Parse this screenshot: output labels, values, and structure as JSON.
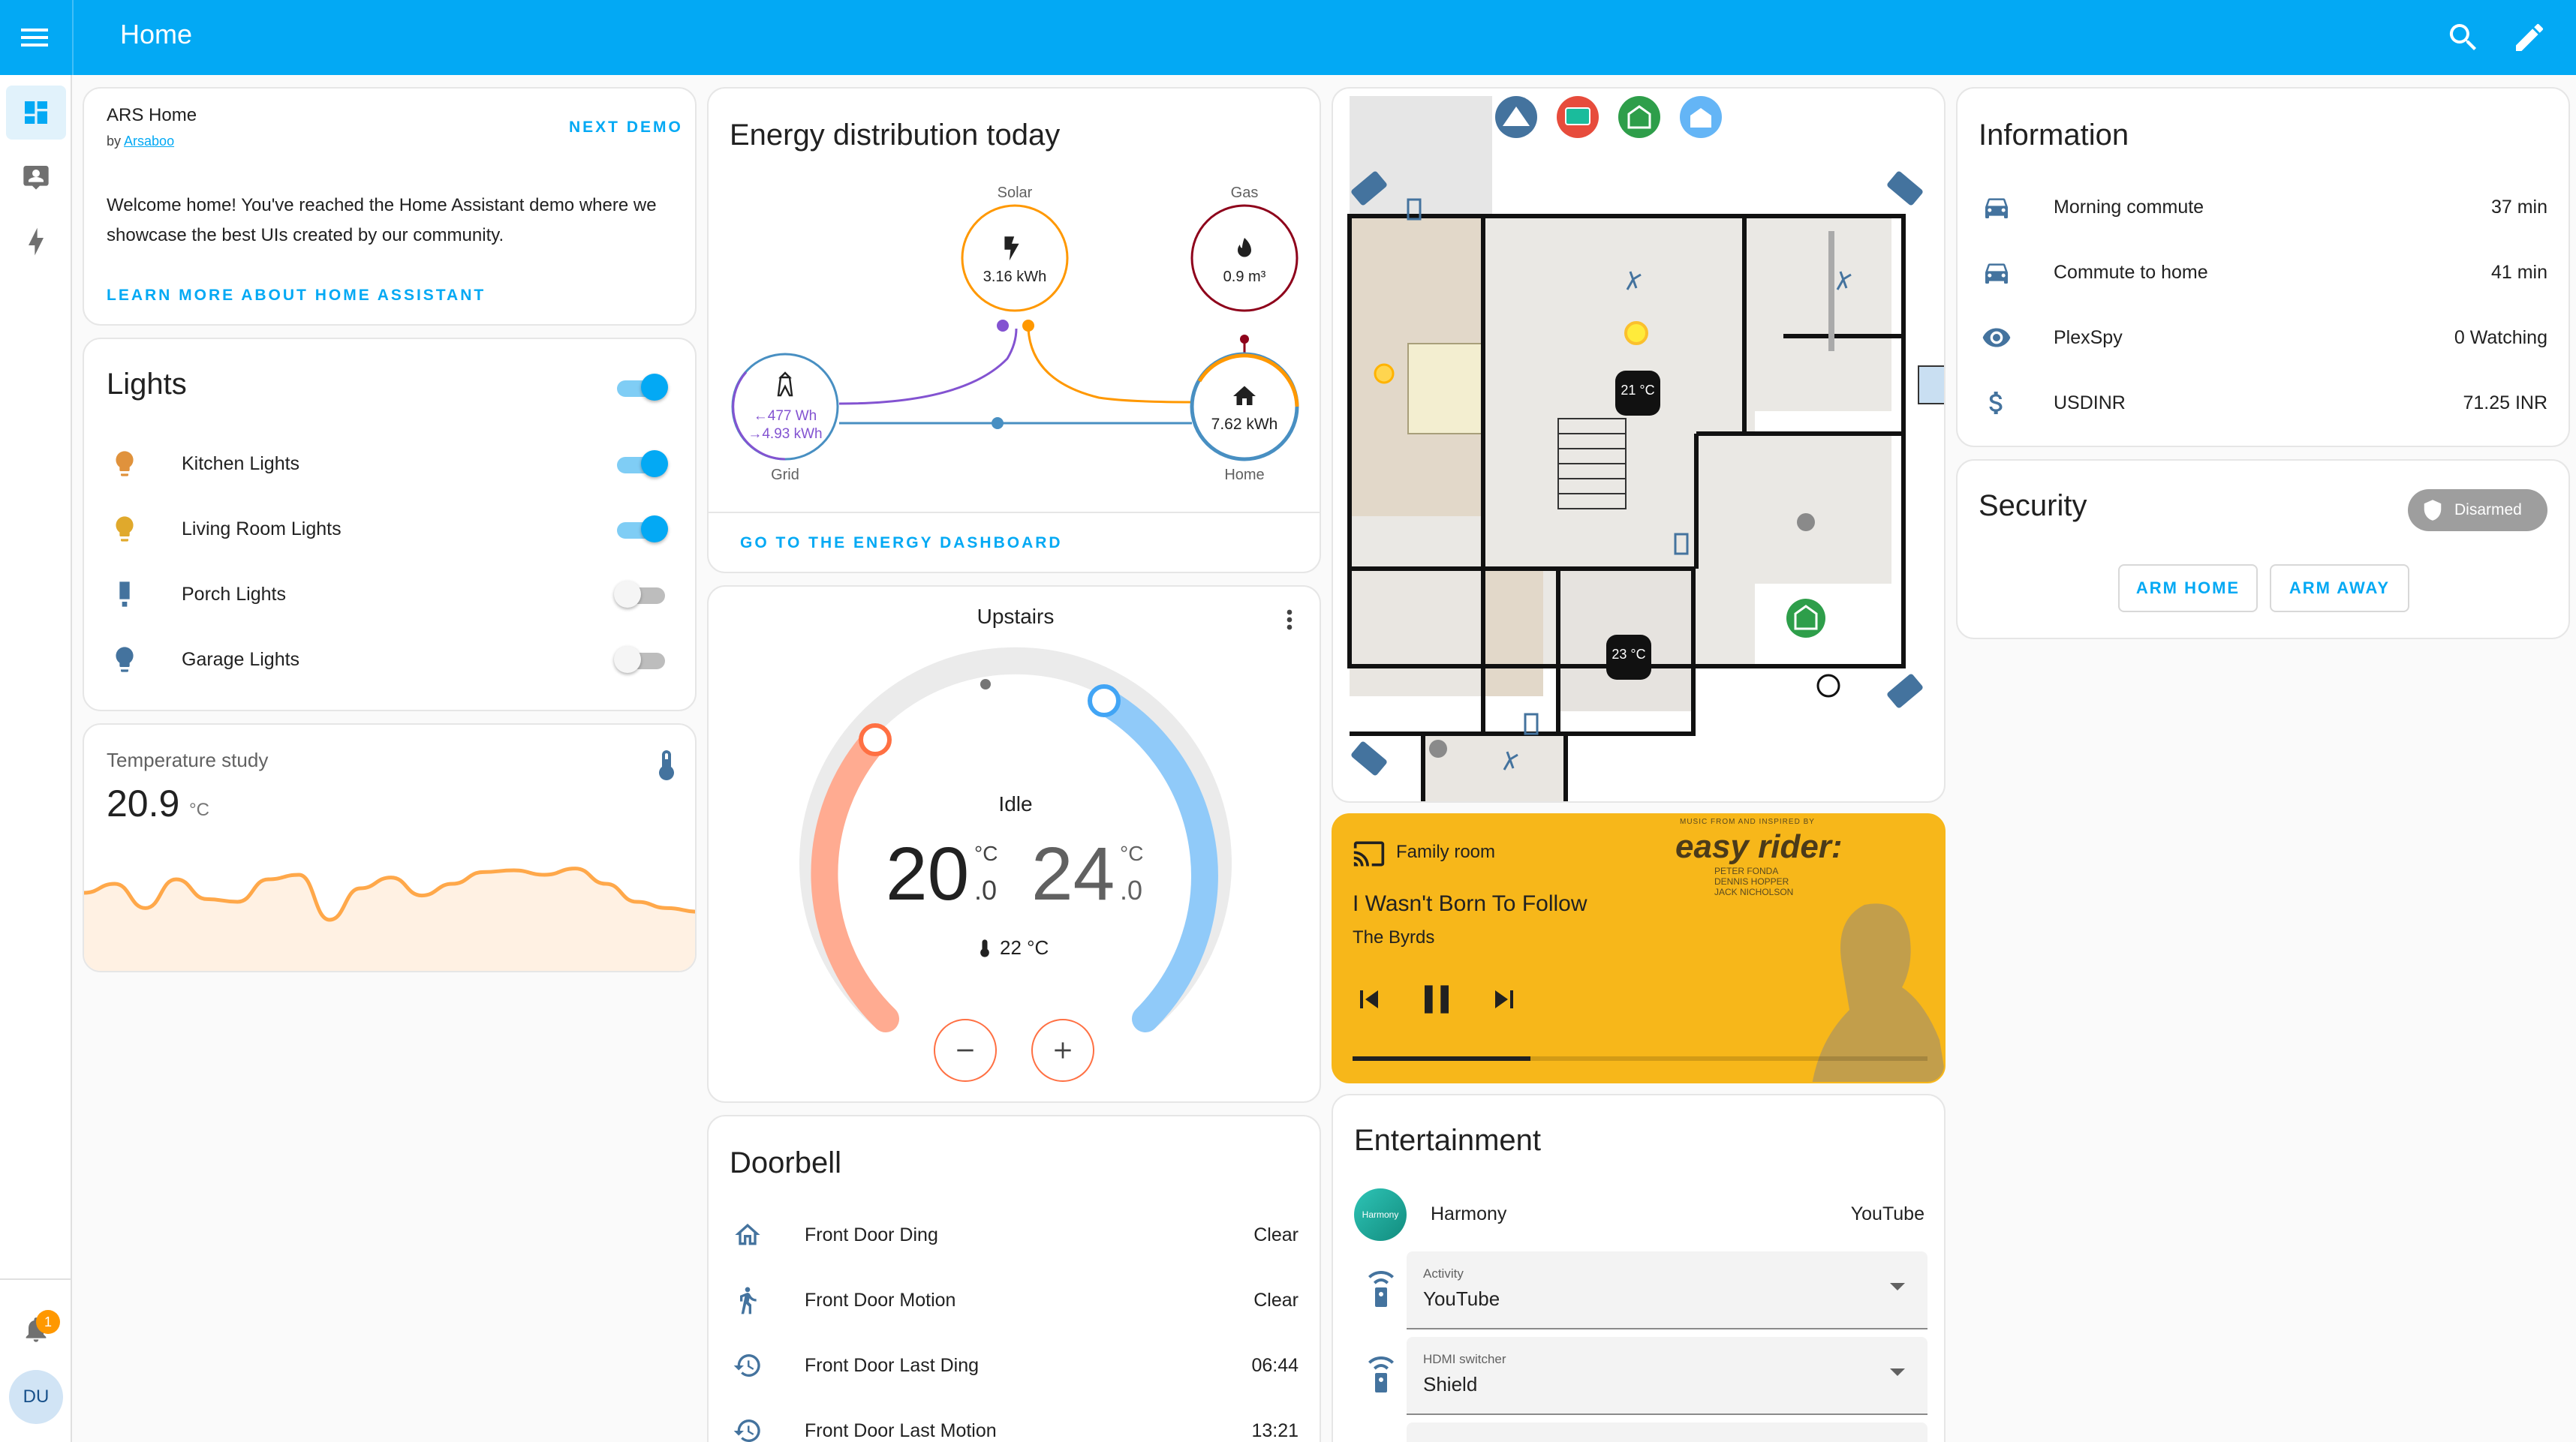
{
  "header": {
    "title": "Home"
  },
  "sidebar": {
    "notification_count": "1",
    "user_initials": "DU"
  },
  "ars_card": {
    "title": "ARS Home",
    "by_prefix": "by",
    "author": "Arsaboo",
    "next_demo_label": "NEXT DEMO",
    "description": "Welcome home! You've reached the Home Assistant demo where we showcase the best UIs created by our community.",
    "learn_more_label": "LEARN MORE ABOUT HOME ASSISTANT"
  },
  "lights": {
    "title": "Lights",
    "items": [
      {
        "label": "Kitchen Lights",
        "on": true,
        "icon": "bulb-icon",
        "color": "#e0923c"
      },
      {
        "label": "Living Room Lights",
        "on": true,
        "icon": "bulb-icon",
        "color": "#e0a92c"
      },
      {
        "label": "Porch Lights",
        "on": false,
        "icon": "lamp-icon",
        "color": "#44739e"
      },
      {
        "label": "Garage Lights",
        "on": false,
        "icon": "bulb-icon",
        "color": "#44739e"
      }
    ]
  },
  "temperature": {
    "title": "Temperature study",
    "value": "20.9",
    "unit": "°C",
    "sparkline": [
      0.45,
      0.35,
      0.62,
      0.3,
      0.52,
      0.55,
      0.3,
      0.25,
      0.75,
      0.4,
      0.28,
      0.48,
      0.35,
      0.22,
      0.2,
      0.25,
      0.18,
      0.35,
      0.55,
      0.62,
      0.66
    ]
  },
  "energy": {
    "title": "Energy distribution today",
    "solar": {
      "label": "Solar",
      "value": "3.16 kWh"
    },
    "gas": {
      "label": "Gas",
      "value": "0.9 m³"
    },
    "grid": {
      "label": "Grid",
      "import": "←477 Wh",
      "export": "→4.93 kWh"
    },
    "home": {
      "label": "Home",
      "value": "7.62 kWh"
    },
    "dashboard_link": "GO TO THE ENERGY DASHBOARD"
  },
  "thermostat": {
    "title": "Upstairs",
    "state": "Idle",
    "low": "20",
    "low_dec": ".0",
    "high": "24",
    "high_dec": ".0",
    "unit": "°C",
    "current": "22 °C"
  },
  "doorbell": {
    "title": "Doorbell",
    "rows": [
      {
        "label": "Front Door Ding",
        "value": "Clear"
      },
      {
        "label": "Front Door Motion",
        "value": "Clear"
      },
      {
        "label": "Front Door Last Ding",
        "value": "06:44"
      },
      {
        "label": "Front Door Last Motion",
        "value": "13:21"
      }
    ]
  },
  "floorplan": {
    "thermostat_1": "21 °C",
    "thermostat_2": "23 °C"
  },
  "media": {
    "room": "Family room",
    "track": "I Wasn't Born To Follow",
    "artist": "The Byrds",
    "art_title": "easy rider:",
    "art_subtitle": "MUSIC FROM AND INSPIRED BY",
    "art_credits": [
      "PETER FONDA",
      "DENNIS HOPPER",
      "JACK NICHOLSON"
    ],
    "progress": 0.31
  },
  "entertainment": {
    "title": "Entertainment",
    "harmony_label": "Harmony",
    "harmony_badge": "Harmony",
    "harmony_value": "YouTube",
    "activity_label": "Activity",
    "activity_value": "YouTube",
    "hdmi_label": "HDMI switcher",
    "hdmi_value": "Shield"
  },
  "information": {
    "title": "Information",
    "rows": [
      {
        "label": "Morning commute",
        "value": "37 min",
        "icon": "car-icon"
      },
      {
        "label": "Commute to home",
        "value": "41 min",
        "icon": "car-icon"
      },
      {
        "label": "PlexSpy",
        "value": "0 Watching",
        "icon": "eye-icon"
      },
      {
        "label": "USDINR",
        "value": "71.25 INR",
        "icon": "dollar-icon"
      }
    ]
  },
  "security": {
    "title": "Security",
    "state": "Disarmed",
    "arm_home": "ARM HOME",
    "arm_away": "ARM AWAY"
  },
  "colors": {
    "accent": "#03a9f4",
    "solar": "#ff9800",
    "gas": "#8e021b",
    "grid": "#488fc2",
    "grid_return": "#8353d1"
  }
}
